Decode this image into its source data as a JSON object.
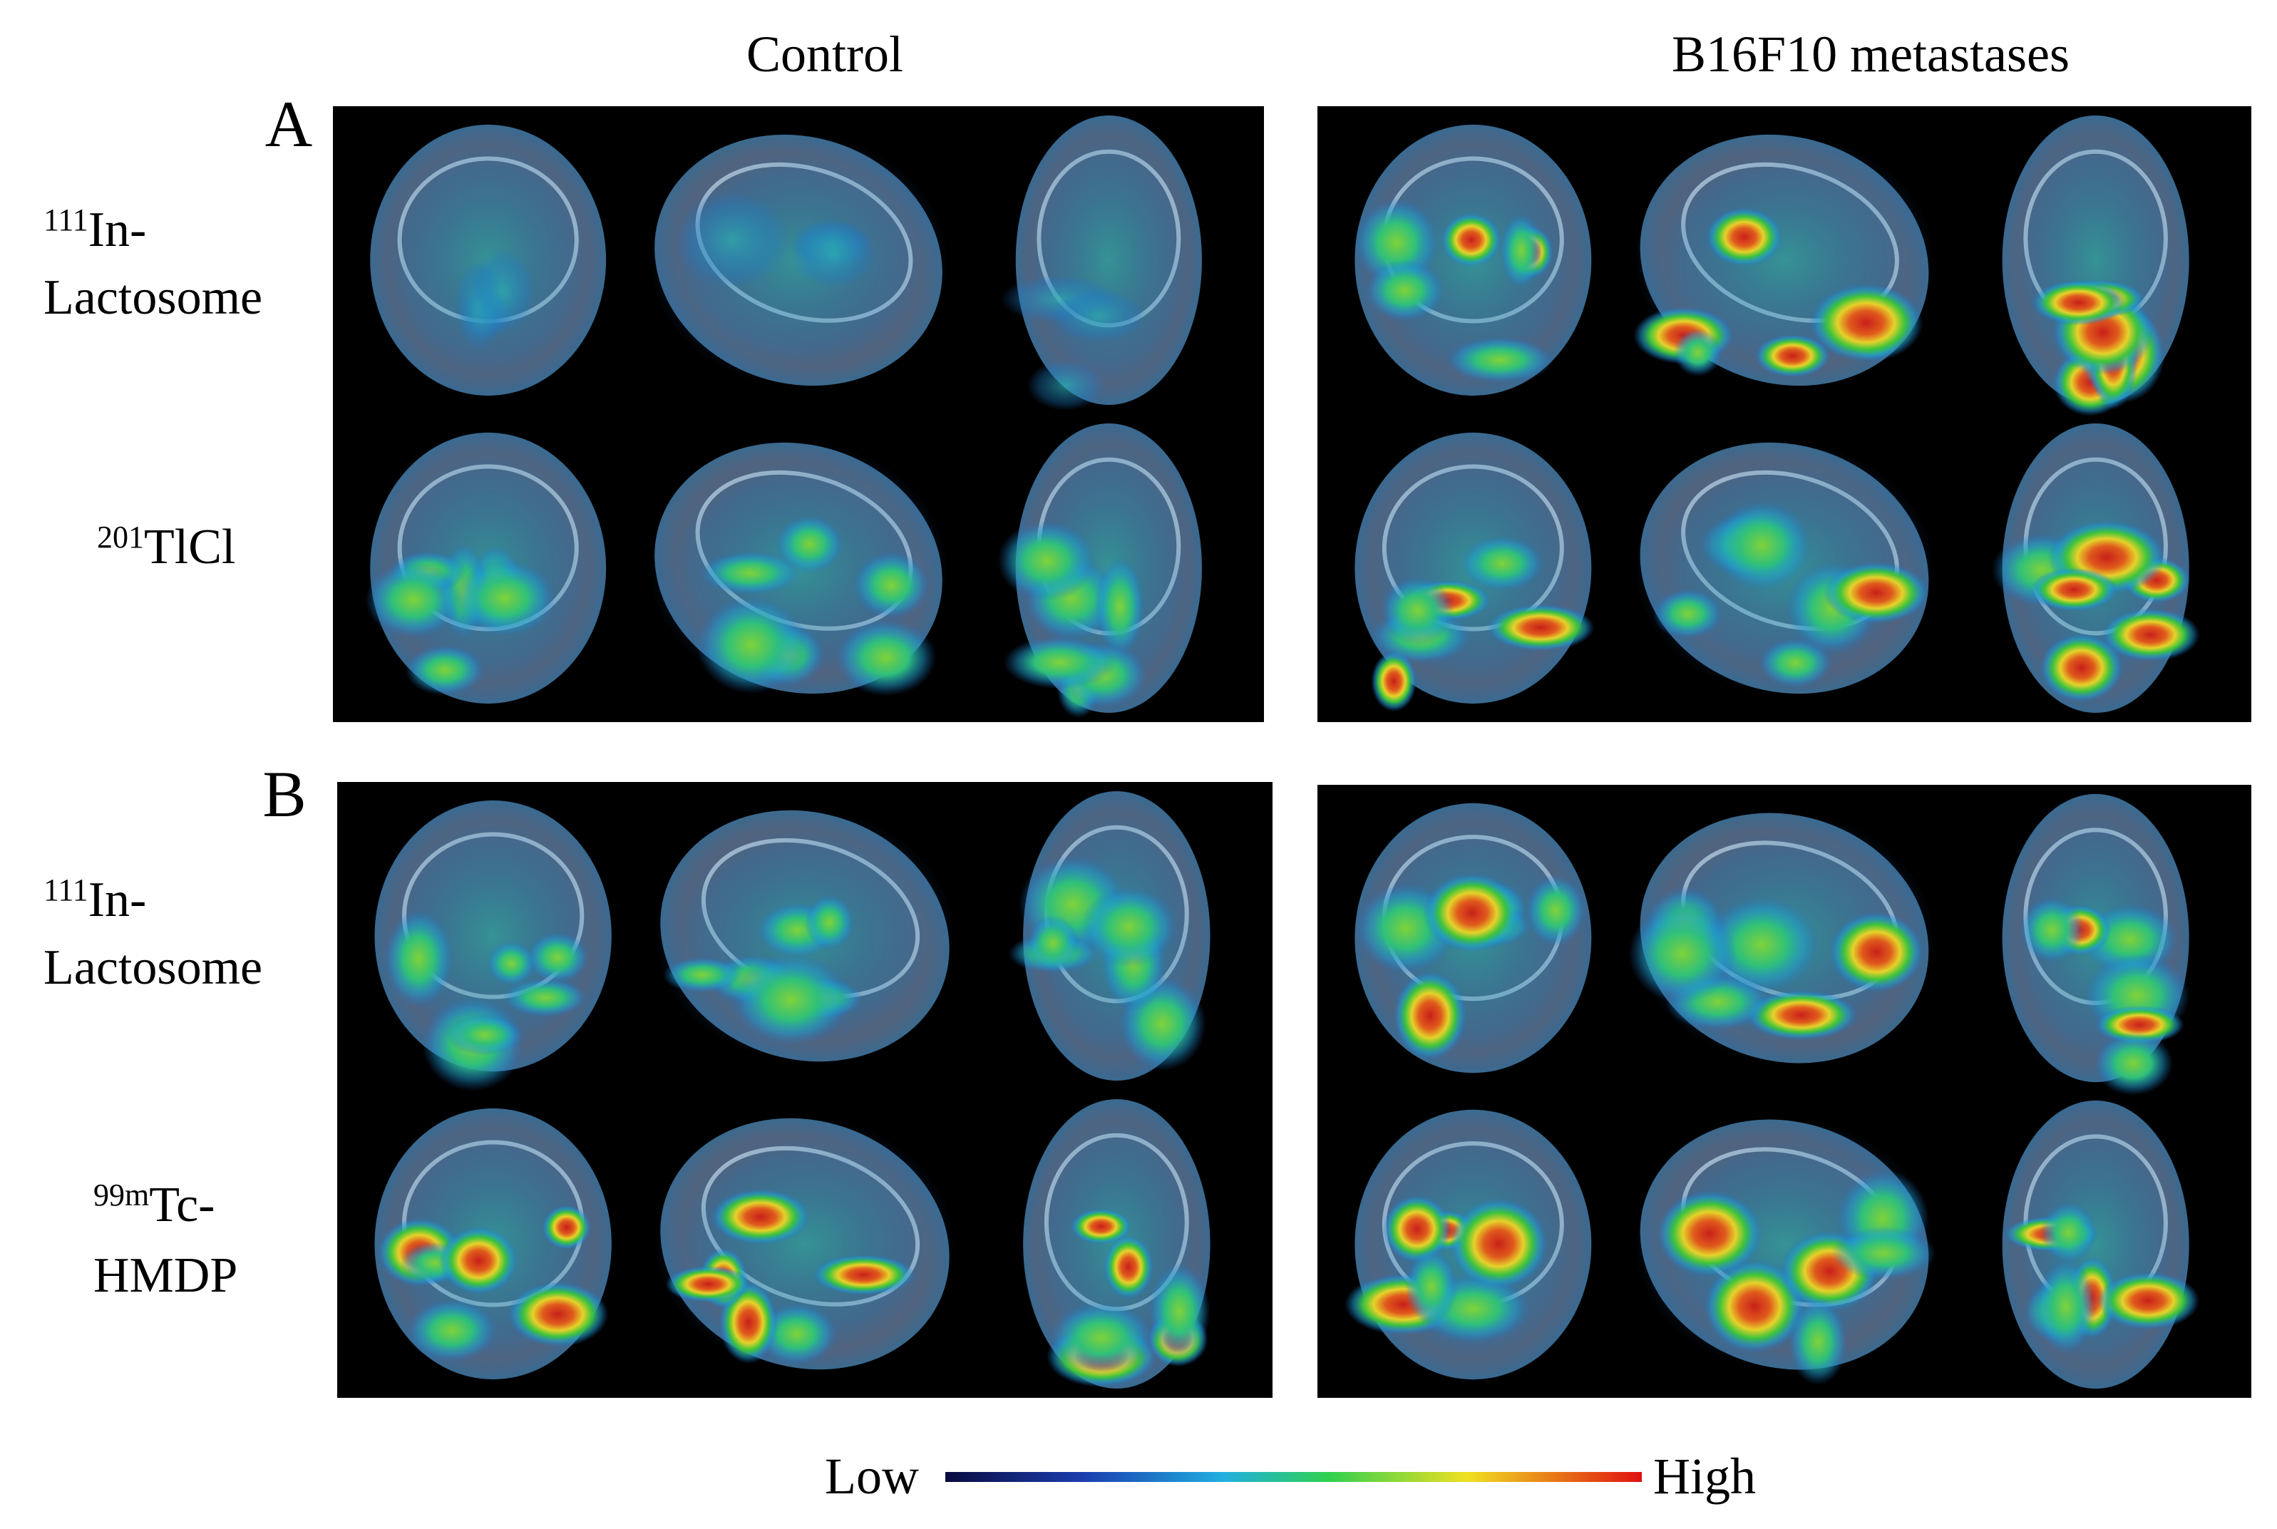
{
  "columns": [
    "Control",
    "B16F10 metastases"
  ],
  "panels": [
    {
      "label": "A",
      "rows": [
        {
          "superscript": "111",
          "lines": [
            "In-",
            "Lactosome"
          ]
        },
        {
          "superscript": "201",
          "lines": [
            "TlCl"
          ]
        }
      ]
    },
    {
      "label": "B",
      "rows": [
        {
          "superscript": "111",
          "lines": [
            "In-",
            "Lactosome"
          ]
        },
        {
          "superscript": "99m",
          "lines": [
            "Tc-",
            "HMDP"
          ]
        }
      ]
    }
  ],
  "colorbar": {
    "low": "Low",
    "high": "High"
  }
}
